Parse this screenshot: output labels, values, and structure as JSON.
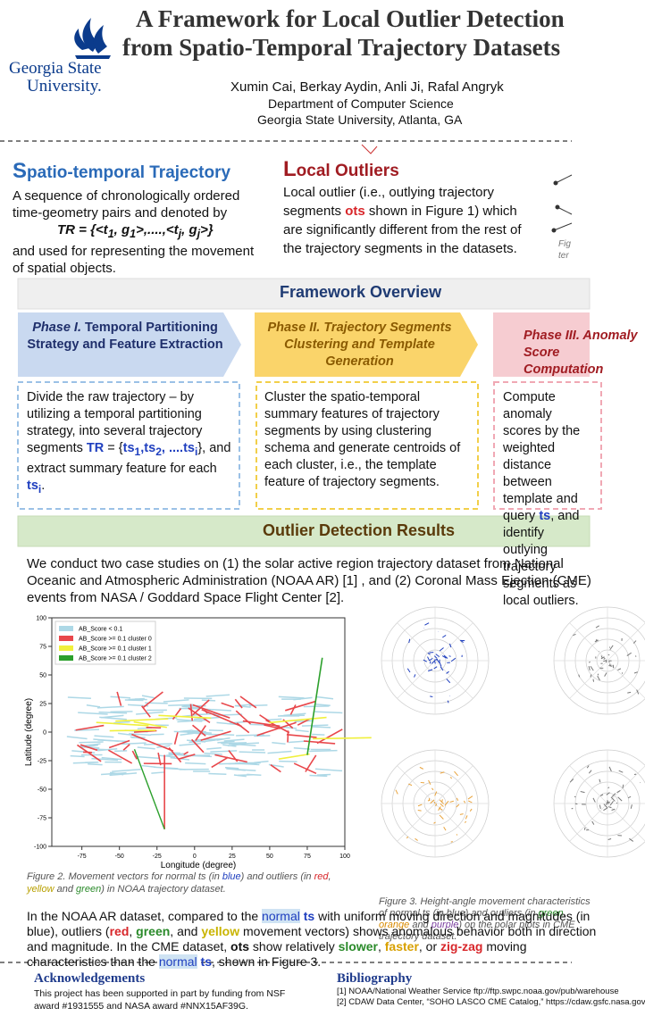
{
  "header": {
    "title_lines": [
      "A Framework for Local Outlier Detection",
      "from Spatio-Temporal Trajectory Datasets"
    ],
    "logo": [
      "Georgia State",
      "University."
    ],
    "authors": "Xumin Cai, Berkay Aydin, Anli Ji, Rafal Angryk",
    "department": "Department of Computer Science",
    "affiliation": "Georgia State University, Atlanta, GA"
  },
  "spatio_temporal": {
    "title": [
      "S",
      "patio-temporal Trajectory"
    ],
    "body": [
      "A sequence of chronologically ordered time-geometry pairs and denoted by",
      "TR = {<t",
      "1",
      ", g",
      "1",
      ">,....,<t",
      "j",
      ", g",
      "j",
      ">}",
      "and used for representing the movement of spatial objects."
    ]
  },
  "local_outliers": {
    "title": [
      "L",
      "ocal Outliers"
    ],
    "body": [
      "Local outlier (i.e., outlying trajectory segments ",
      "ots",
      " shown in Figure 1) which are significantly different from the rest of the trajectory segments in the datasets."
    ]
  },
  "figure1": {
    "caption": [
      "Fig",
      "ter"
    ]
  },
  "framework": {
    "title": "Framework Overview",
    "phases": [
      {
        "title": [
          "Phase I.",
          " Temporal Partitioning Strategy and Feature Extraction"
        ],
        "body": [
          "Divide the raw trajectory  –  by utilizing a temporal partitioning strategy, into several  trajectory segments ",
          "TR",
          " = {",
          "ts",
          "1",
          ",",
          "ts",
          "2",
          ", ....",
          "ts",
          "i",
          "},",
          " and extract summary feature for each ",
          "ts",
          "i",
          "."
        ]
      },
      {
        "title": [
          "Phase II.",
          " Trajectory Segments Clustering and Template Generation"
        ],
        "body": [
          "Cluster the spatio-temporal summary features of  trajectory segments by using clustering schema and generate centroids of each cluster, i.e.,  the template feature of trajectory segments."
        ]
      },
      {
        "title": [
          "Phase III.",
          " Anomaly Score Computation"
        ],
        "body": [
          "Compute anomaly scores by the weighted distance between template and query ",
          "ts",
          ", and identify outlying trajectory segments as local outliers."
        ]
      }
    ]
  },
  "results": {
    "title": "Outlier Detection Results",
    "intro": "We conduct two case studies on (1) the solar active region trajectory dataset from National Oceanic and Atmospheric Administration (NOAA AR) [1] , and (2) Coronal Mass Ejection (CME) events from NASA / Goddard Space Flight Center [2]."
  },
  "figure2": {
    "xlabel": "Longitude (degree)",
    "ylabel": "Latitude (degree)",
    "xlim": [
      -95,
      100
    ],
    "ylim": [
      -100,
      100
    ],
    "xticks": [
      -75,
      -50,
      -25,
      0,
      25,
      50,
      75,
      100
    ],
    "yticks": [
      -100,
      -75,
      -50,
      -25,
      0,
      25,
      50,
      75,
      100
    ],
    "legend": [
      {
        "name": "AB_Score < 0.1",
        "color": "#add8e6"
      },
      {
        "name": "AB_Score >= 0.1 cluster 0",
        "color": "#e8474b"
      },
      {
        "name": "AB_Score >= 0.1 cluster 1",
        "color": "#f0f03c"
      },
      {
        "name": "AB_Score >= 0.1 cluster 2",
        "color": "#2ca02c"
      }
    ],
    "caption": [
      "Figure 2.",
      " Movement vectors for normal ts (in ",
      "blue",
      ") and outliers (in ",
      "red",
      ", ",
      "yellow",
      " and ",
      "green",
      ") in NOAA trajectory dataset."
    ]
  },
  "figure3": {
    "caption": [
      "Figure 3.",
      " Height-angle movement characteristics of normal ts (in blue) and outliers (in ",
      "green",
      ", ",
      "orange",
      " and ",
      "purple",
      ") on the polar plots in CME trajectory dataset."
    ]
  },
  "conclusion": [
    "In the NOAA AR dataset, compared to the ",
    "normal",
    " ",
    "ts",
    " with uniform moving direction and magnitudes (in blue), outliers (",
    "red",
    ", ",
    "green",
    ", and ",
    "yellow",
    " movement vectors) shows anomalous behavior both in direction and magnitude. In the CME dataset, ",
    "ots",
    " show relatively ",
    "slower",
    ", ",
    "faster",
    ", or ",
    "zig-zag",
    " moving characteristics than the ",
    "normal",
    " ",
    "ts",
    ", shown in Figure 3."
  ],
  "acknowledgements": {
    "title": "Acknowledgements",
    "body": "This project has been supported in part by funding from NSF award #1931555 and NASA award #NNX15AF39G."
  },
  "bibliography": {
    "title": "Bibliography",
    "items": [
      "[1] NOAA/National Weather Service ftp://ftp.swpc.noaa.gov/pub/warehouse",
      "[2] CDAW Data Center, “SOHO LASCO CME Catalog,” https://cdaw.gsfc.nasa.gov"
    ]
  }
}
